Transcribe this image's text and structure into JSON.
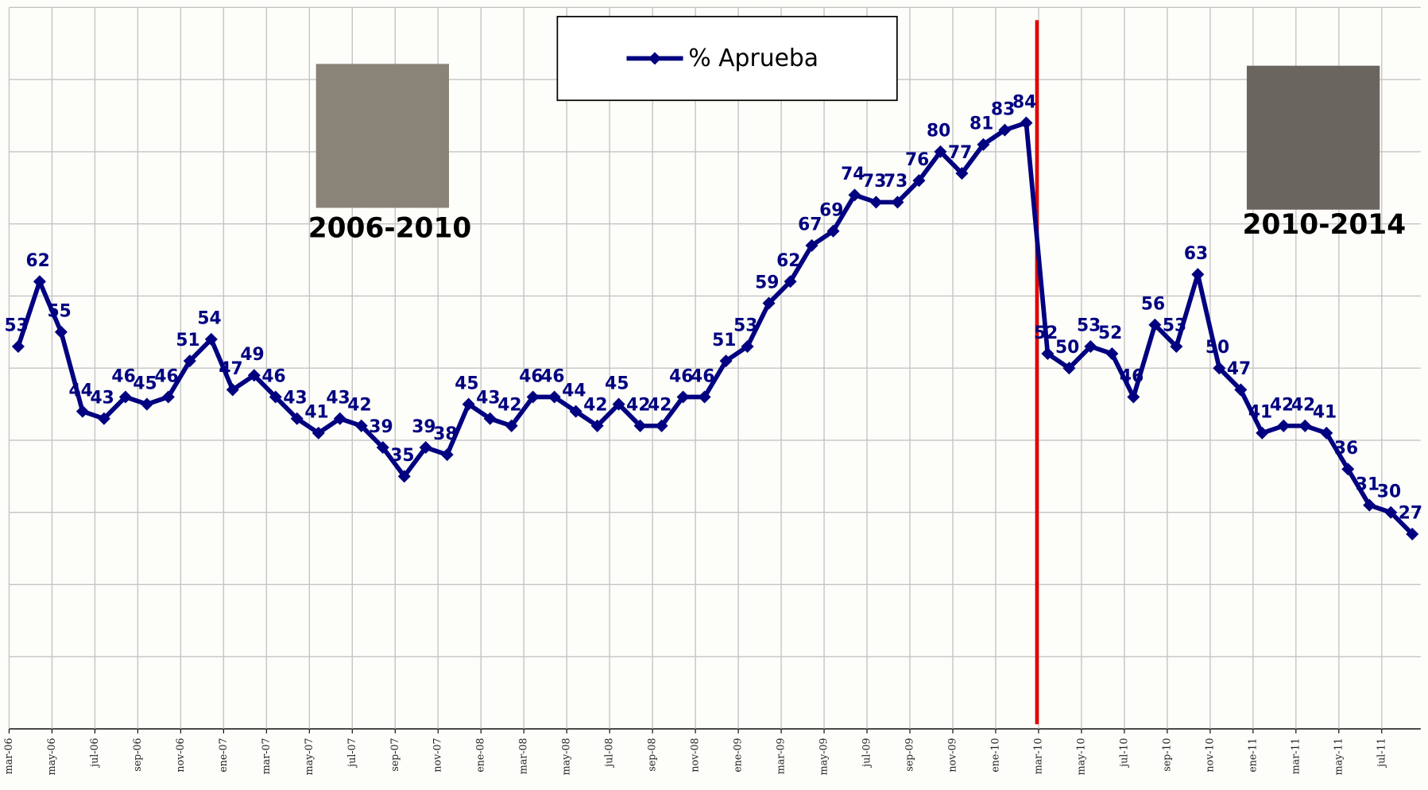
{
  "chart_data": {
    "type": "line",
    "categories": [
      "mar-06",
      null,
      "may-06",
      null,
      "jul-06",
      null,
      "sep-06",
      null,
      "nov-06",
      null,
      "ene-07",
      null,
      "mar-07",
      null,
      "may-07",
      null,
      "jul-07",
      null,
      "sep-07",
      null,
      "nov-07",
      null,
      "ene-08",
      null,
      "mar-08",
      null,
      "may-08",
      null,
      "jul-08",
      null,
      "sep-08",
      null,
      "nov-08",
      null,
      "ene-09",
      null,
      "mar-09",
      null,
      "may-09",
      null,
      "jul-09",
      null,
      "sep-09",
      null,
      "nov-09",
      null,
      "ene-10",
      null,
      "mar-10",
      null,
      "may-10",
      null,
      "jul-10",
      null,
      "sep-10",
      null,
      "nov-10",
      null,
      "ene-11",
      null,
      "mar-11",
      null,
      "may-11",
      null,
      "jul-11",
      null
    ],
    "series": [
      {
        "name": "% Aprueba",
        "color": "#000080",
        "values": [
          53,
          62,
          55,
          44,
          43,
          46,
          45,
          46,
          51,
          54,
          47,
          49,
          46,
          43,
          41,
          43,
          42,
          39,
          35,
          39,
          38,
          45,
          43,
          42,
          46,
          46,
          44,
          42,
          45,
          42,
          42,
          46,
          46,
          51,
          53,
          59,
          62,
          67,
          69,
          74,
          73,
          73,
          76,
          80,
          77,
          81,
          83,
          84,
          52,
          50,
          53,
          52,
          46,
          56,
          53,
          63,
          50,
          47,
          41,
          42,
          42,
          41,
          36,
          31,
          30,
          27
        ]
      }
    ],
    "ylim": [
      0,
      100
    ],
    "yticks": [
      0,
      10,
      20,
      30,
      40,
      50,
      60,
      70,
      80,
      90,
      100
    ],
    "grid": true,
    "annotations": [
      "2006-2010",
      "2010-2014"
    ]
  }
}
